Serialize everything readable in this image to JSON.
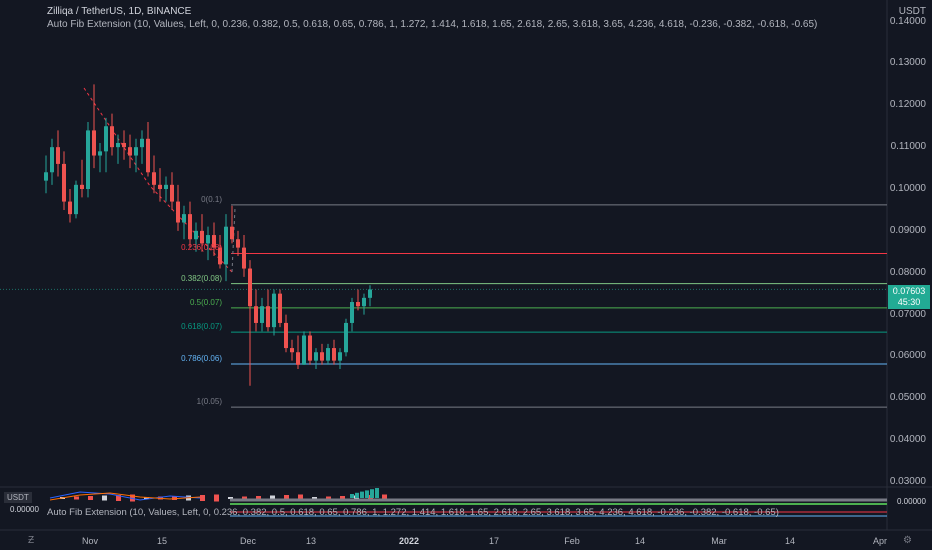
{
  "header": {
    "symbol_line": "Zilliqa / TetherUS, 1D, BINANCE",
    "indicator_line": "Auto Fib Extension (10, Values, Left, 0, 0.236, 0.382, 0.5, 0.618, 0.65, 0.786, 1, 1.272, 1.414, 1.618, 1.65, 2.618, 2.65, 3.618, 3.65, 4.236, 4.618, -0.236, -0.382, -0.618, -0.65)"
  },
  "currency": "USDT",
  "price_axis": [
    "0.14000",
    "0.13000",
    "0.12000",
    "0.11000",
    "0.10000",
    "0.09000",
    "0.08000",
    "0.07000",
    "0.06000",
    "0.05000",
    "0.04000",
    "0.03000"
  ],
  "current_price": {
    "value": "0.07603",
    "countdown": "45:30"
  },
  "fib_levels": [
    {
      "label": "0(0.1)",
      "price": 0.0962,
      "color": "#787b86"
    },
    {
      "label": "0.236(0.08)",
      "price": 0.0846,
      "color": "#f23645"
    },
    {
      "label": "0.382(0.08)",
      "price": 0.0774,
      "color": "#81c784"
    },
    {
      "label": "0.5(0.07)",
      "price": 0.0716,
      "color": "#4caf50"
    },
    {
      "label": "0.618(0.07)",
      "price": 0.0658,
      "color": "#089981"
    },
    {
      "label": "0.786(0.06)",
      "price": 0.0582,
      "color": "#64b5f6"
    },
    {
      "label": "1(0.05)",
      "price": 0.0479,
      "color": "#787b86"
    }
  ],
  "time_axis": [
    "Nov",
    "15",
    "Dec",
    "13",
    "2022",
    "17",
    "Feb",
    "14",
    "Mar",
    "14",
    "Apr"
  ],
  "lower_pane": {
    "currency": "USDT",
    "left_value": "0.00000",
    "right_value": "0.00000",
    "indicator_line": "Auto Fib Extension (10, Values, Left, 0, 0.236, 0.382, 0.5, 0.618, 0.65, 0.786, 1, 1.272, 1.414, 1.618, 1.65, 2.618, 2.65, 3.618, 3.65, 4.236, 4.618, -0.236, -0.382, -0.618, -0.65)"
  },
  "chart_data": {
    "type": "candlestick",
    "title": "Zilliqa / TetherUS, 1D, BINANCE",
    "ylim": [
      0.03,
      0.14
    ],
    "candles": [
      [
        0.102,
        0.108,
        0.099,
        0.104
      ],
      [
        0.104,
        0.112,
        0.101,
        0.11
      ],
      [
        0.11,
        0.114,
        0.103,
        0.106
      ],
      [
        0.106,
        0.109,
        0.095,
        0.097
      ],
      [
        0.097,
        0.1,
        0.092,
        0.094
      ],
      [
        0.094,
        0.102,
        0.093,
        0.101
      ],
      [
        0.101,
        0.107,
        0.098,
        0.1
      ],
      [
        0.1,
        0.116,
        0.098,
        0.114
      ],
      [
        0.114,
        0.125,
        0.105,
        0.108
      ],
      [
        0.108,
        0.111,
        0.104,
        0.109
      ],
      [
        0.109,
        0.117,
        0.104,
        0.115
      ],
      [
        0.115,
        0.118,
        0.108,
        0.11
      ],
      [
        0.11,
        0.113,
        0.106,
        0.111
      ],
      [
        0.111,
        0.114,
        0.107,
        0.11
      ],
      [
        0.11,
        0.113,
        0.105,
        0.108
      ],
      [
        0.108,
        0.112,
        0.104,
        0.11
      ],
      [
        0.11,
        0.114,
        0.106,
        0.112
      ],
      [
        0.112,
        0.116,
        0.103,
        0.104
      ],
      [
        0.104,
        0.108,
        0.099,
        0.101
      ],
      [
        0.101,
        0.105,
        0.097,
        0.1
      ],
      [
        0.1,
        0.103,
        0.097,
        0.101
      ],
      [
        0.101,
        0.104,
        0.095,
        0.097
      ],
      [
        0.097,
        0.101,
        0.09,
        0.092
      ],
      [
        0.092,
        0.096,
        0.088,
        0.094
      ],
      [
        0.094,
        0.097,
        0.086,
        0.088
      ],
      [
        0.088,
        0.092,
        0.085,
        0.09
      ],
      [
        0.09,
        0.094,
        0.085,
        0.087
      ],
      [
        0.087,
        0.091,
        0.083,
        0.089
      ],
      [
        0.089,
        0.092,
        0.084,
        0.086
      ],
      [
        0.086,
        0.089,
        0.081,
        0.082
      ],
      [
        0.082,
        0.094,
        0.078,
        0.091
      ],
      [
        0.091,
        0.096,
        0.087,
        0.088
      ],
      [
        0.088,
        0.09,
        0.084,
        0.086
      ],
      [
        0.086,
        0.089,
        0.079,
        0.081
      ],
      [
        0.081,
        0.083,
        0.053,
        0.072
      ],
      [
        0.072,
        0.076,
        0.066,
        0.068
      ],
      [
        0.068,
        0.074,
        0.066,
        0.072
      ],
      [
        0.072,
        0.076,
        0.066,
        0.067
      ],
      [
        0.067,
        0.076,
        0.065,
        0.075
      ],
      [
        0.075,
        0.076,
        0.067,
        0.068
      ],
      [
        0.068,
        0.07,
        0.061,
        0.062
      ],
      [
        0.062,
        0.064,
        0.059,
        0.061
      ],
      [
        0.061,
        0.065,
        0.057,
        0.058
      ],
      [
        0.058,
        0.066,
        0.058,
        0.065
      ],
      [
        0.065,
        0.066,
        0.058,
        0.059
      ],
      [
        0.059,
        0.062,
        0.057,
        0.061
      ],
      [
        0.061,
        0.063,
        0.058,
        0.059
      ],
      [
        0.059,
        0.063,
        0.058,
        0.062
      ],
      [
        0.062,
        0.064,
        0.058,
        0.059
      ],
      [
        0.059,
        0.062,
        0.057,
        0.061
      ],
      [
        0.061,
        0.069,
        0.06,
        0.068
      ],
      [
        0.068,
        0.074,
        0.066,
        0.073
      ],
      [
        0.073,
        0.076,
        0.071,
        0.072
      ],
      [
        0.072,
        0.075,
        0.07,
        0.074
      ],
      [
        0.074,
        0.077,
        0.072,
        0.076
      ]
    ]
  }
}
